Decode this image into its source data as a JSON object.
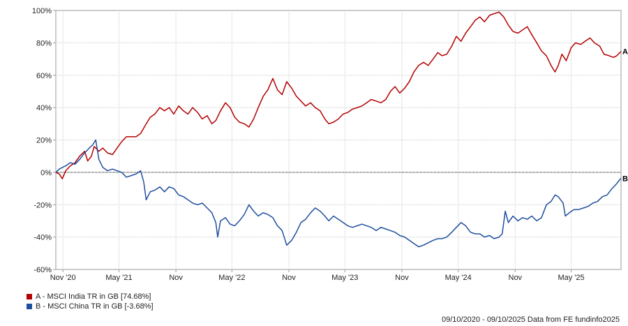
{
  "chart_data": {
    "type": "line",
    "ylim": [
      -60,
      100
    ],
    "xlim": [
      "2020-10-09",
      "2025-10-09"
    ],
    "y_ticks": [
      100,
      80,
      60,
      40,
      20,
      0,
      -20,
      -40,
      -60
    ],
    "y_tick_labels": [
      "100%",
      "80%",
      "60%",
      "40%",
      "20%",
      "0%",
      "-20%",
      "-40%",
      "-60%"
    ],
    "x_ticks": [
      {
        "date": "2020-11-01",
        "label": "Nov '20"
      },
      {
        "date": "2021-05-01",
        "label": "May '21"
      },
      {
        "date": "2021-11-01",
        "label": "Nov"
      },
      {
        "date": "2022-05-01",
        "label": "May '22"
      },
      {
        "date": "2022-11-01",
        "label": "Nov"
      },
      {
        "date": "2023-05-01",
        "label": "May '23"
      },
      {
        "date": "2023-11-01",
        "label": "Nov"
      },
      {
        "date": "2024-05-01",
        "label": "May '24"
      },
      {
        "date": "2024-11-01",
        "label": "Nov"
      },
      {
        "date": "2025-05-01",
        "label": "May '25"
      }
    ],
    "grid": true,
    "zero_line": true,
    "series": [
      {
        "name": "A - MSCI India TR in GB [74.68%]",
        "end_label": "A",
        "color": "#b30000",
        "points": [
          [
            "2020-10-09",
            0
          ],
          [
            "2020-10-20",
            -1
          ],
          [
            "2020-10-30",
            -4
          ],
          [
            "2020-11-10",
            1
          ],
          [
            "2020-11-25",
            4
          ],
          [
            "2020-12-10",
            6
          ],
          [
            "2020-12-25",
            10
          ],
          [
            "2021-01-10",
            13
          ],
          [
            "2021-01-20",
            7
          ],
          [
            "2021-02-01",
            10
          ],
          [
            "2021-02-10",
            16
          ],
          [
            "2021-02-25",
            13
          ],
          [
            "2021-03-10",
            15
          ],
          [
            "2021-03-25",
            12
          ],
          [
            "2021-04-10",
            11
          ],
          [
            "2021-04-25",
            15
          ],
          [
            "2021-05-10",
            19
          ],
          [
            "2021-05-25",
            22
          ],
          [
            "2021-06-10",
            22
          ],
          [
            "2021-06-25",
            22
          ],
          [
            "2021-07-10",
            24
          ],
          [
            "2021-07-25",
            29
          ],
          [
            "2021-08-10",
            34
          ],
          [
            "2021-08-25",
            36
          ],
          [
            "2021-09-10",
            40
          ],
          [
            "2021-09-25",
            38
          ],
          [
            "2021-10-10",
            40
          ],
          [
            "2021-10-25",
            36
          ],
          [
            "2021-11-10",
            41
          ],
          [
            "2021-11-25",
            38
          ],
          [
            "2021-12-10",
            36
          ],
          [
            "2021-12-25",
            40
          ],
          [
            "2022-01-10",
            37
          ],
          [
            "2022-01-25",
            33
          ],
          [
            "2022-02-10",
            35
          ],
          [
            "2022-02-25",
            30
          ],
          [
            "2022-03-10",
            32
          ],
          [
            "2022-03-25",
            38
          ],
          [
            "2022-04-10",
            43
          ],
          [
            "2022-04-25",
            40
          ],
          [
            "2022-05-10",
            34
          ],
          [
            "2022-05-25",
            31
          ],
          [
            "2022-06-10",
            30
          ],
          [
            "2022-06-25",
            28
          ],
          [
            "2022-07-10",
            33
          ],
          [
            "2022-07-25",
            40
          ],
          [
            "2022-08-10",
            47
          ],
          [
            "2022-08-25",
            51
          ],
          [
            "2022-09-10",
            58
          ],
          [
            "2022-09-25",
            51
          ],
          [
            "2022-10-10",
            48
          ],
          [
            "2022-10-25",
            56
          ],
          [
            "2022-11-10",
            52
          ],
          [
            "2022-11-25",
            47
          ],
          [
            "2022-12-10",
            44
          ],
          [
            "2022-12-25",
            41
          ],
          [
            "2023-01-10",
            43
          ],
          [
            "2023-01-25",
            40
          ],
          [
            "2023-02-10",
            38
          ],
          [
            "2023-02-25",
            33
          ],
          [
            "2023-03-10",
            30
          ],
          [
            "2023-03-25",
            31
          ],
          [
            "2023-04-10",
            33
          ],
          [
            "2023-04-25",
            36
          ],
          [
            "2023-05-10",
            37
          ],
          [
            "2023-05-25",
            39
          ],
          [
            "2023-06-10",
            40
          ],
          [
            "2023-06-25",
            41
          ],
          [
            "2023-07-10",
            43
          ],
          [
            "2023-07-25",
            45
          ],
          [
            "2023-08-10",
            44
          ],
          [
            "2023-08-25",
            43
          ],
          [
            "2023-09-10",
            45
          ],
          [
            "2023-09-25",
            50
          ],
          [
            "2023-10-10",
            53
          ],
          [
            "2023-10-25",
            49
          ],
          [
            "2023-11-10",
            52
          ],
          [
            "2023-11-25",
            56
          ],
          [
            "2023-12-10",
            62
          ],
          [
            "2023-12-25",
            66
          ],
          [
            "2024-01-10",
            68
          ],
          [
            "2024-01-25",
            66
          ],
          [
            "2024-02-10",
            70
          ],
          [
            "2024-02-25",
            74
          ],
          [
            "2024-03-10",
            72
          ],
          [
            "2024-03-25",
            73
          ],
          [
            "2024-04-10",
            78
          ],
          [
            "2024-04-25",
            84
          ],
          [
            "2024-05-10",
            81
          ],
          [
            "2024-05-25",
            86
          ],
          [
            "2024-06-10",
            90
          ],
          [
            "2024-06-25",
            94
          ],
          [
            "2024-07-10",
            96
          ],
          [
            "2024-07-25",
            93
          ],
          [
            "2024-08-10",
            97
          ],
          [
            "2024-08-25",
            98
          ],
          [
            "2024-09-10",
            99
          ],
          [
            "2024-09-25",
            96
          ],
          [
            "2024-10-10",
            91
          ],
          [
            "2024-10-25",
            87
          ],
          [
            "2024-11-10",
            86
          ],
          [
            "2024-11-25",
            88
          ],
          [
            "2024-12-10",
            90
          ],
          [
            "2024-12-25",
            85
          ],
          [
            "2025-01-10",
            80
          ],
          [
            "2025-01-25",
            75
          ],
          [
            "2025-02-10",
            72
          ],
          [
            "2025-02-25",
            66
          ],
          [
            "2025-03-10",
            62
          ],
          [
            "2025-03-20",
            66
          ],
          [
            "2025-04-01",
            73
          ],
          [
            "2025-04-15",
            69
          ],
          [
            "2025-05-01",
            77
          ],
          [
            "2025-05-15",
            80
          ],
          [
            "2025-06-01",
            79
          ],
          [
            "2025-06-15",
            81
          ],
          [
            "2025-07-01",
            83
          ],
          [
            "2025-07-15",
            80
          ],
          [
            "2025-08-01",
            78
          ],
          [
            "2025-08-15",
            73
          ],
          [
            "2025-09-01",
            72
          ],
          [
            "2025-09-15",
            71
          ],
          [
            "2025-09-25",
            72
          ],
          [
            "2025-10-09",
            74.68
          ]
        ]
      },
      {
        "name": "B - MSCI China TR in GB [-3.68%]",
        "end_label": "B",
        "color": "#1f4e9e",
        "points": [
          [
            "2020-10-09",
            0
          ],
          [
            "2020-10-20",
            2
          ],
          [
            "2020-10-30",
            3
          ],
          [
            "2020-11-10",
            4
          ],
          [
            "2020-11-25",
            6
          ],
          [
            "2020-12-10",
            5
          ],
          [
            "2020-12-25",
            8
          ],
          [
            "2021-01-10",
            12
          ],
          [
            "2021-01-25",
            15
          ],
          [
            "2021-02-05",
            17
          ],
          [
            "2021-02-15",
            20
          ],
          [
            "2021-02-25",
            8
          ],
          [
            "2021-03-10",
            3
          ],
          [
            "2021-03-25",
            1
          ],
          [
            "2021-04-10",
            2
          ],
          [
            "2021-04-25",
            1
          ],
          [
            "2021-05-10",
            0
          ],
          [
            "2021-05-25",
            -3
          ],
          [
            "2021-06-10",
            -2
          ],
          [
            "2021-06-25",
            -1
          ],
          [
            "2021-07-10",
            1
          ],
          [
            "2021-07-20",
            -6
          ],
          [
            "2021-07-28",
            -17
          ],
          [
            "2021-08-10",
            -12
          ],
          [
            "2021-08-25",
            -11
          ],
          [
            "2021-09-10",
            -9
          ],
          [
            "2021-09-25",
            -12
          ],
          [
            "2021-10-10",
            -9
          ],
          [
            "2021-10-25",
            -10
          ],
          [
            "2021-11-10",
            -14
          ],
          [
            "2021-11-25",
            -15
          ],
          [
            "2021-12-10",
            -17
          ],
          [
            "2021-12-25",
            -19
          ],
          [
            "2022-01-10",
            -20
          ],
          [
            "2022-01-25",
            -19
          ],
          [
            "2022-02-10",
            -22
          ],
          [
            "2022-02-25",
            -25
          ],
          [
            "2022-03-10",
            -31
          ],
          [
            "2022-03-16",
            -40
          ],
          [
            "2022-03-25",
            -30
          ],
          [
            "2022-04-10",
            -28
          ],
          [
            "2022-04-25",
            -32
          ],
          [
            "2022-05-10",
            -33
          ],
          [
            "2022-05-25",
            -30
          ],
          [
            "2022-06-10",
            -26
          ],
          [
            "2022-06-25",
            -20
          ],
          [
            "2022-07-10",
            -24
          ],
          [
            "2022-07-25",
            -27
          ],
          [
            "2022-08-10",
            -25
          ],
          [
            "2022-08-25",
            -26
          ],
          [
            "2022-09-10",
            -28
          ],
          [
            "2022-09-25",
            -33
          ],
          [
            "2022-10-10",
            -36
          ],
          [
            "2022-10-25",
            -45
          ],
          [
            "2022-11-10",
            -42
          ],
          [
            "2022-11-25",
            -37
          ],
          [
            "2022-12-10",
            -31
          ],
          [
            "2022-12-25",
            -29
          ],
          [
            "2023-01-10",
            -25
          ],
          [
            "2023-01-25",
            -22
          ],
          [
            "2023-02-10",
            -24
          ],
          [
            "2023-02-25",
            -27
          ],
          [
            "2023-03-10",
            -30
          ],
          [
            "2023-03-25",
            -27
          ],
          [
            "2023-04-10",
            -29
          ],
          [
            "2023-04-25",
            -31
          ],
          [
            "2023-05-10",
            -33
          ],
          [
            "2023-05-25",
            -34
          ],
          [
            "2023-06-10",
            -33
          ],
          [
            "2023-06-25",
            -32
          ],
          [
            "2023-07-10",
            -33
          ],
          [
            "2023-07-25",
            -34
          ],
          [
            "2023-08-10",
            -36
          ],
          [
            "2023-08-25",
            -34
          ],
          [
            "2023-09-10",
            -35
          ],
          [
            "2023-09-25",
            -36
          ],
          [
            "2023-10-10",
            -37
          ],
          [
            "2023-10-25",
            -39
          ],
          [
            "2023-11-10",
            -40
          ],
          [
            "2023-11-25",
            -42
          ],
          [
            "2023-12-10",
            -44
          ],
          [
            "2023-12-25",
            -46
          ],
          [
            "2024-01-10",
            -45
          ],
          [
            "2024-01-20",
            -44
          ],
          [
            "2024-02-10",
            -42
          ],
          [
            "2024-02-25",
            -41
          ],
          [
            "2024-03-10",
            -41
          ],
          [
            "2024-03-25",
            -40
          ],
          [
            "2024-04-10",
            -37
          ],
          [
            "2024-04-25",
            -34
          ],
          [
            "2024-05-10",
            -31
          ],
          [
            "2024-05-25",
            -33
          ],
          [
            "2024-06-10",
            -37
          ],
          [
            "2024-06-25",
            -38
          ],
          [
            "2024-07-10",
            -38
          ],
          [
            "2024-07-25",
            -40
          ],
          [
            "2024-08-10",
            -39
          ],
          [
            "2024-08-25",
            -41
          ],
          [
            "2024-09-10",
            -40
          ],
          [
            "2024-09-20",
            -38
          ],
          [
            "2024-09-30",
            -24
          ],
          [
            "2024-10-10",
            -31
          ],
          [
            "2024-10-25",
            -27
          ],
          [
            "2024-11-10",
            -30
          ],
          [
            "2024-11-25",
            -28
          ],
          [
            "2024-12-10",
            -29
          ],
          [
            "2024-12-25",
            -27
          ],
          [
            "2025-01-10",
            -30
          ],
          [
            "2025-01-25",
            -28
          ],
          [
            "2025-02-10",
            -20
          ],
          [
            "2025-02-25",
            -18
          ],
          [
            "2025-03-10",
            -14
          ],
          [
            "2025-03-20",
            -15
          ],
          [
            "2025-04-05",
            -19
          ],
          [
            "2025-04-12",
            -27
          ],
          [
            "2025-04-25",
            -25
          ],
          [
            "2025-05-10",
            -23
          ],
          [
            "2025-05-25",
            -23
          ],
          [
            "2025-06-10",
            -22
          ],
          [
            "2025-06-25",
            -21
          ],
          [
            "2025-07-10",
            -19
          ],
          [
            "2025-07-25",
            -18
          ],
          [
            "2025-08-10",
            -15
          ],
          [
            "2025-08-25",
            -14
          ],
          [
            "2025-09-10",
            -10
          ],
          [
            "2025-09-25",
            -7
          ],
          [
            "2025-10-03",
            -5
          ],
          [
            "2025-10-09",
            -3.68
          ]
        ]
      }
    ]
  },
  "legend": {
    "items": [
      {
        "label": "A - MSCI India TR in GB [74.68%]",
        "color": "#b30000"
      },
      {
        "label": "B - MSCI China TR in GB [-3.68%]",
        "color": "#1f4e9e"
      }
    ]
  },
  "footer": "09/10/2020 - 09/10/2025 Data from FE fundinfo2025"
}
